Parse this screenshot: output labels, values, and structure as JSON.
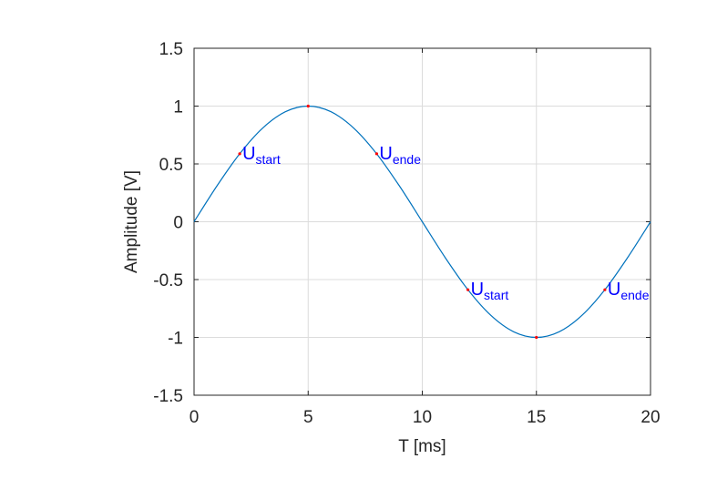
{
  "chart_data": {
    "type": "line",
    "xlabel": "T [ms]",
    "ylabel": "Amplitude [V]",
    "xlim": [
      0,
      20
    ],
    "ylim": [
      -1.5,
      1.5
    ],
    "grid": true,
    "xticks": [
      "0",
      "5",
      "10",
      "15",
      "20"
    ],
    "yticks": [
      "1.5",
      "1",
      "0.5",
      "0",
      "-0.5",
      "-1",
      "-1.5"
    ],
    "series": [
      {
        "color": "#0072bd",
        "x": [
          0,
          1,
          2,
          3,
          4,
          5,
          6,
          7,
          8,
          9,
          10,
          11,
          12,
          13,
          14,
          15,
          16,
          17,
          18,
          19,
          20
        ],
        "y": [
          0,
          0.309,
          0.588,
          0.809,
          0.951,
          1,
          0.951,
          0.809,
          0.588,
          0.309,
          0,
          -0.309,
          -0.588,
          -0.809,
          -0.951,
          -1,
          -0.951,
          -0.809,
          -0.588,
          -0.309,
          0
        ]
      }
    ],
    "markers": [
      {
        "x": 2,
        "y": 0.588
      },
      {
        "x": 5,
        "y": 1
      },
      {
        "x": 8,
        "y": 0.588
      },
      {
        "x": 12,
        "y": -0.588
      },
      {
        "x": 15,
        "y": -1
      },
      {
        "x": 18,
        "y": -0.588
      }
    ],
    "annotations": [
      {
        "x": 2,
        "y": 0.588,
        "base": "U",
        "sub": "start"
      },
      {
        "x": 8,
        "y": 0.588,
        "base": "U",
        "sub": "ende"
      },
      {
        "x": 12,
        "y": -0.588,
        "base": "U",
        "sub": "start"
      },
      {
        "x": 18,
        "y": -0.588,
        "base": "U",
        "sub": "ende"
      }
    ],
    "colors": {
      "line": "#0072bd",
      "marker": "#ff0000",
      "annotation": "#0000ff",
      "grid": "#dcdcdc",
      "axis": "#262626"
    }
  }
}
